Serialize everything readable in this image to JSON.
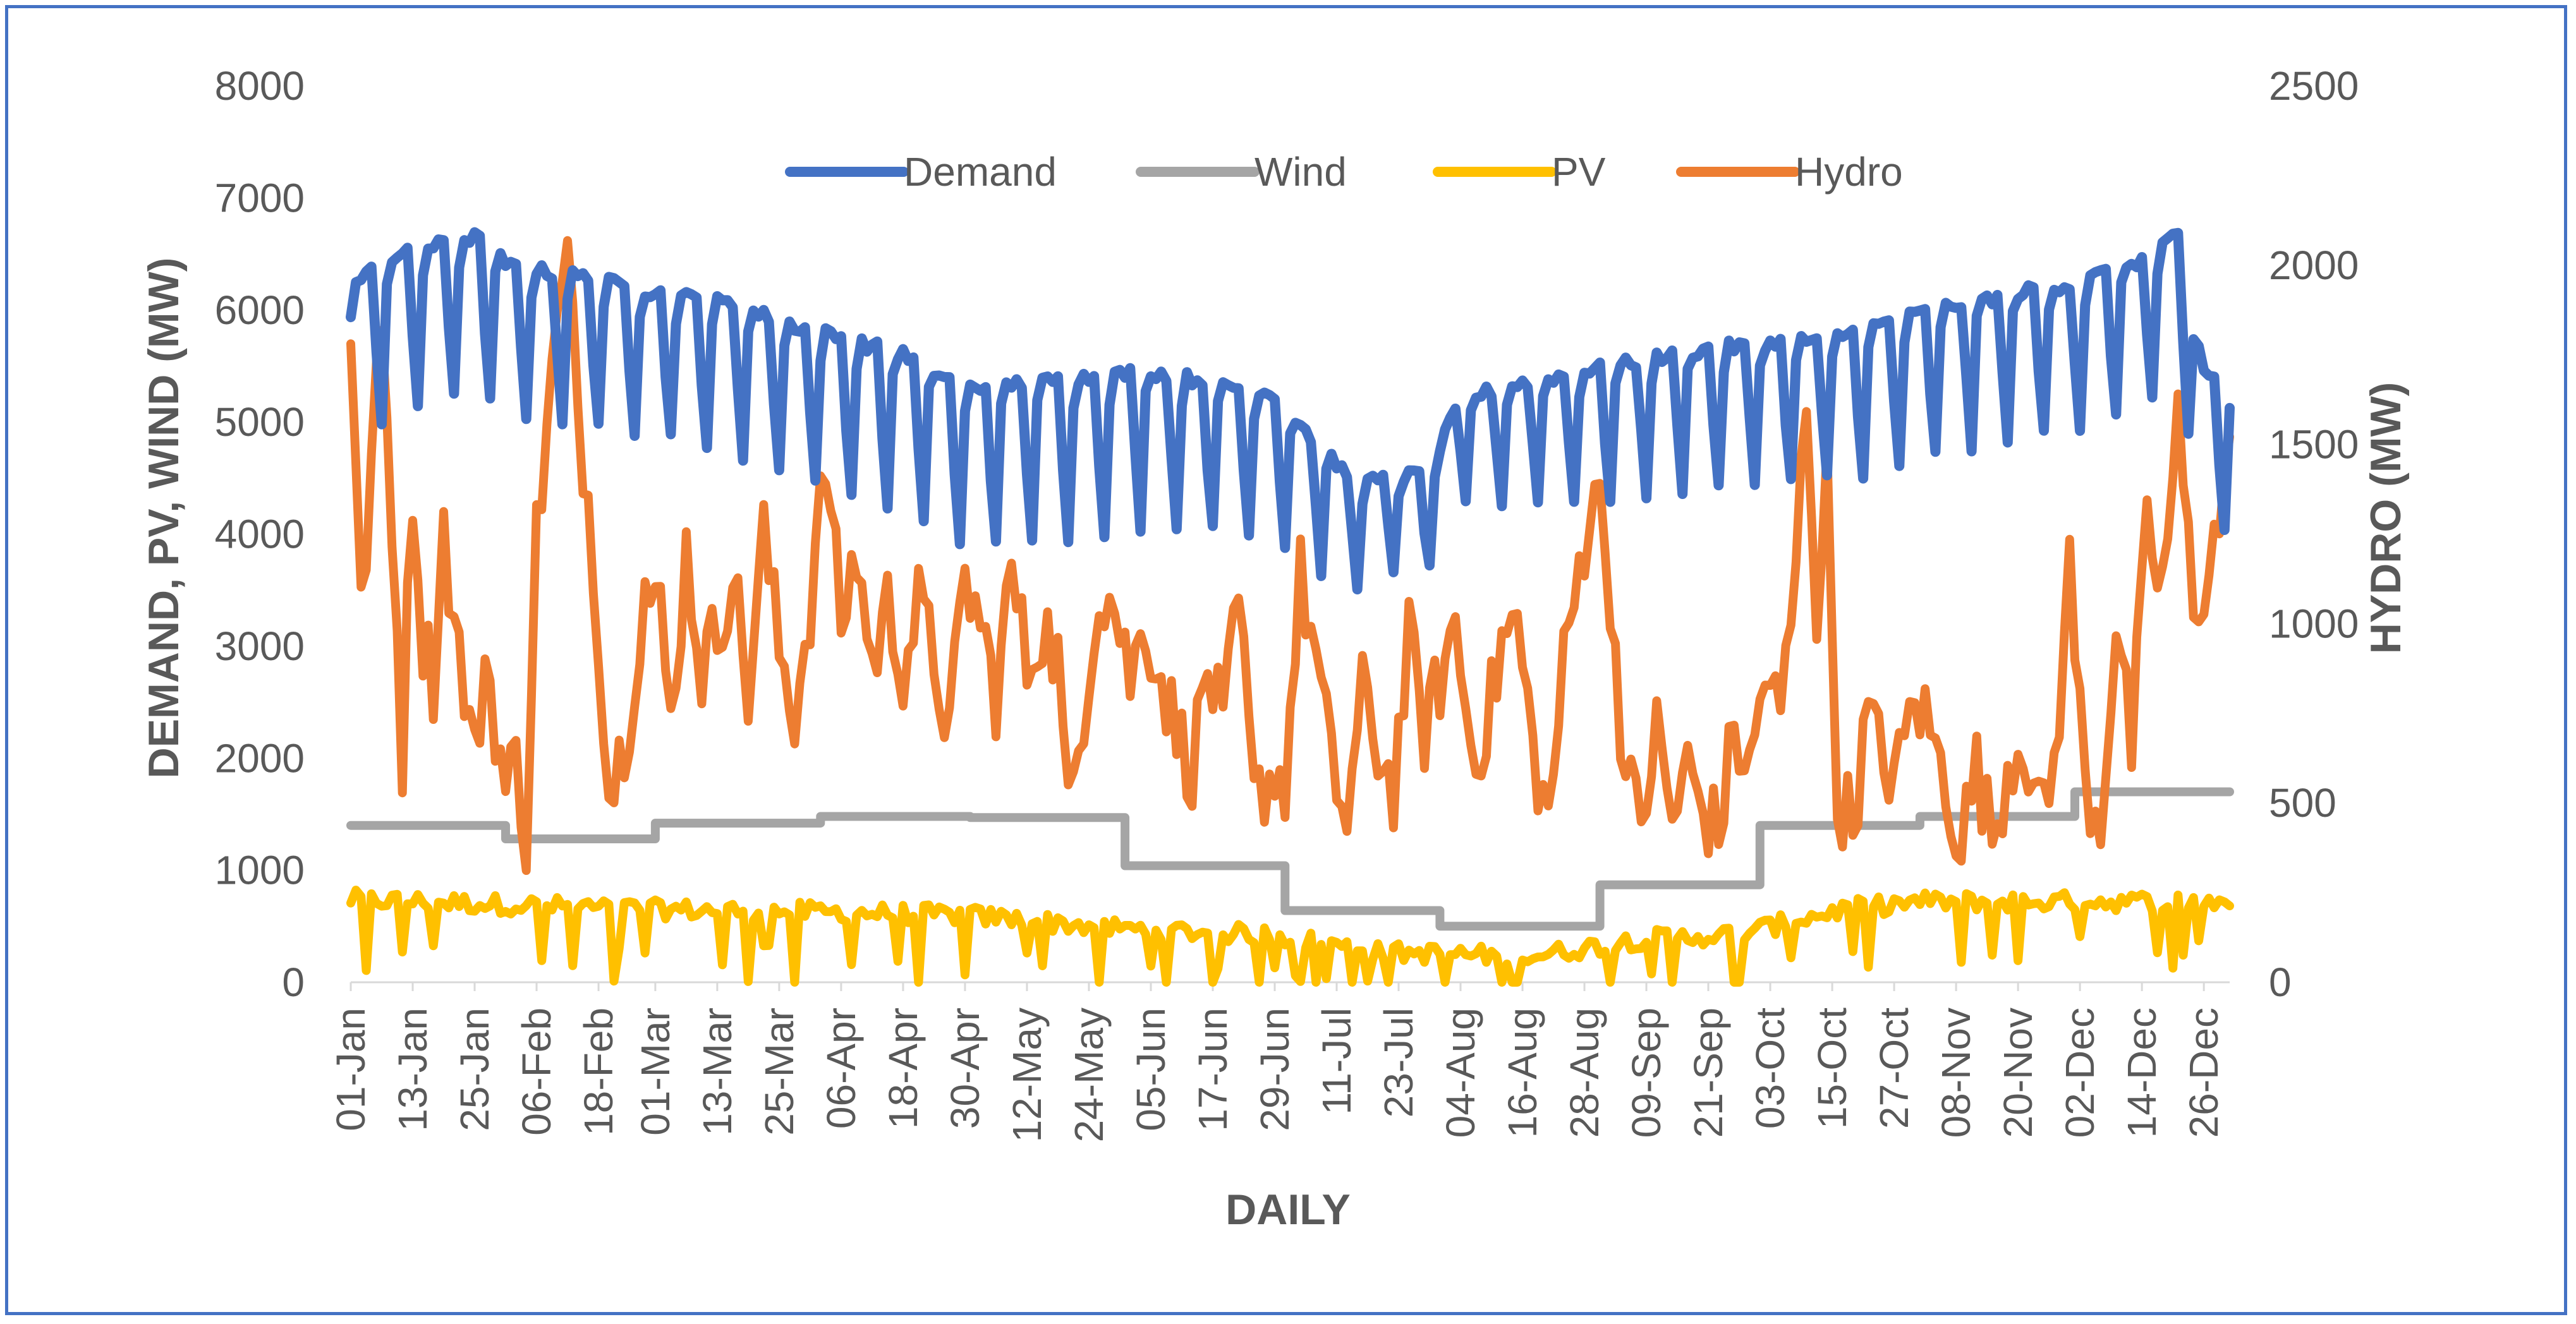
{
  "chart_data": {
    "type": "line",
    "title": "",
    "xlabel": "DAILY",
    "ylabel": "DEMAND, PV, WIND (MW)",
    "y2label": "HYDRO (MW)",
    "ylim": [
      0,
      8000
    ],
    "y2lim": [
      0,
      2500
    ],
    "yticks": [
      "0",
      "1000",
      "2000",
      "3000",
      "4000",
      "5000",
      "6000",
      "7000",
      "8000"
    ],
    "y2ticks": [
      "0",
      "500",
      "1000",
      "1500",
      "2000",
      "2500"
    ],
    "x_days": 365,
    "xtick_labels": [
      "01-Jan",
      "13-Jan",
      "25-Jan",
      "06-Feb",
      "18-Feb",
      "01-Mar",
      "13-Mar",
      "25-Mar",
      "06-Apr",
      "18-Apr",
      "30-Apr",
      "12-May",
      "24-May",
      "05-Jun",
      "17-Jun",
      "29-Jun",
      "11-Jul",
      "23-Jul",
      "04-Aug",
      "16-Aug",
      "28-Aug",
      "09-Sep",
      "21-Sep",
      "03-Oct",
      "15-Oct",
      "27-Oct",
      "08-Nov",
      "20-Nov",
      "02-Dec",
      "14-Dec",
      "26-Dec"
    ],
    "xtick_days": [
      1,
      13,
      25,
      37,
      49,
      60,
      72,
      84,
      96,
      108,
      120,
      132,
      144,
      156,
      168,
      180,
      192,
      204,
      216,
      228,
      240,
      252,
      264,
      276,
      288,
      300,
      312,
      324,
      336,
      348,
      360
    ],
    "legend": {
      "position": "top-center"
    },
    "series": [
      {
        "name": "Demand",
        "axis": "left",
        "color": "#4472C4",
        "style": "weekly-cycle",
        "weekday_level": [
          [
            1,
            6200
          ],
          [
            8,
            6450
          ],
          [
            20,
            6600
          ],
          [
            25,
            6650
          ],
          [
            32,
            6380
          ],
          [
            45,
            6300
          ],
          [
            60,
            6150
          ],
          [
            75,
            6050
          ],
          [
            84,
            5900
          ],
          [
            96,
            5750
          ],
          [
            108,
            5600
          ],
          [
            120,
            5300
          ],
          [
            132,
            5350
          ],
          [
            144,
            5400
          ],
          [
            156,
            5450
          ],
          [
            168,
            5350
          ],
          [
            180,
            5250
          ],
          [
            190,
            4700
          ],
          [
            196,
            4450
          ],
          [
            204,
            4500
          ],
          [
            210,
            4550
          ],
          [
            216,
            5200
          ],
          [
            228,
            5350
          ],
          [
            240,
            5450
          ],
          [
            252,
            5550
          ],
          [
            264,
            5650
          ],
          [
            276,
            5700
          ],
          [
            288,
            5750
          ],
          [
            300,
            5900
          ],
          [
            312,
            6050
          ],
          [
            324,
            6150
          ],
          [
            336,
            6250
          ],
          [
            348,
            6450
          ],
          [
            355,
            6650
          ],
          [
            360,
            5450
          ],
          [
            365,
            5300
          ]
        ],
        "weekend_dip": [
          [
            1,
            1400
          ],
          [
            60,
            1250
          ],
          [
            120,
            1450
          ],
          [
            180,
            1300
          ],
          [
            200,
            800
          ],
          [
            240,
            1150
          ],
          [
            300,
            1300
          ],
          [
            365,
            1300
          ]
        ]
      },
      {
        "name": "Wind",
        "axis": "left",
        "color": "#A5A5A5",
        "style": "step",
        "steps": [
          [
            1,
            1400
          ],
          [
            31,
            1280
          ],
          [
            60,
            1420
          ],
          [
            92,
            1480
          ],
          [
            121,
            1470
          ],
          [
            151,
            1040
          ],
          [
            182,
            640
          ],
          [
            212,
            500
          ],
          [
            243,
            870
          ],
          [
            274,
            1400
          ],
          [
            305,
            1480
          ],
          [
            335,
            1700
          ],
          [
            365,
            1700
          ]
        ]
      },
      {
        "name": "PV",
        "axis": "left",
        "color": "#FFC000",
        "style": "noisy",
        "level": [
          [
            1,
            740
          ],
          [
            60,
            650
          ],
          [
            90,
            630
          ],
          [
            120,
            600
          ],
          [
            150,
            480
          ],
          [
            180,
            420
          ],
          [
            200,
            270
          ],
          [
            230,
            230
          ],
          [
            250,
            380
          ],
          [
            270,
            430
          ],
          [
            290,
            650
          ],
          [
            305,
            720
          ],
          [
            335,
            720
          ],
          [
            365,
            720
          ]
        ],
        "noise": 170
      },
      {
        "name": "Hydro",
        "axis": "right",
        "color": "#ED7D31",
        "style": "noisy",
        "points": [
          [
            1,
            1830
          ],
          [
            3,
            1010
          ],
          [
            5,
            1450
          ],
          [
            7,
            1810
          ],
          [
            9,
            1310
          ],
          [
            11,
            640
          ],
          [
            13,
            1390
          ],
          [
            15,
            960
          ],
          [
            17,
            850
          ],
          [
            19,
            1270
          ],
          [
            21,
            1000
          ],
          [
            23,
            820
          ],
          [
            25,
            610
          ],
          [
            27,
            910
          ],
          [
            29,
            730
          ],
          [
            31,
            530
          ],
          [
            33,
            620
          ],
          [
            35,
            420
          ],
          [
            37,
            1250
          ],
          [
            39,
            1540
          ],
          [
            41,
            1830
          ],
          [
            43,
            2010
          ],
          [
            45,
            1600
          ],
          [
            47,
            1350
          ],
          [
            49,
            1000
          ],
          [
            51,
            520
          ],
          [
            53,
            620
          ],
          [
            55,
            760
          ],
          [
            58,
            1100
          ],
          [
            61,
            1020
          ],
          [
            63,
            720
          ],
          [
            66,
            1200
          ],
          [
            69,
            870
          ],
          [
            72,
            980
          ],
          [
            75,
            1150
          ],
          [
            78,
            800
          ],
          [
            81,
            1250
          ],
          [
            84,
            930
          ],
          [
            87,
            750
          ],
          [
            90,
            1050
          ],
          [
            93,
            1450
          ],
          [
            96,
            1000
          ],
          [
            99,
            1200
          ],
          [
            102,
            880
          ],
          [
            105,
            1050
          ],
          [
            108,
            880
          ],
          [
            111,
            1050
          ],
          [
            114,
            900
          ],
          [
            117,
            700
          ],
          [
            120,
            1120
          ],
          [
            123,
            1000
          ],
          [
            126,
            800
          ],
          [
            129,
            1150
          ],
          [
            132,
            880
          ],
          [
            135,
            1000
          ],
          [
            138,
            900
          ],
          [
            140,
            450
          ],
          [
            143,
            780
          ],
          [
            146,
            1100
          ],
          [
            149,
            1050
          ],
          [
            152,
            850
          ],
          [
            155,
            1000
          ],
          [
            158,
            850
          ],
          [
            161,
            700
          ],
          [
            164,
            600
          ],
          [
            167,
            880
          ],
          [
            170,
            700
          ],
          [
            173,
            1050
          ],
          [
            176,
            500
          ],
          [
            179,
            580
          ],
          [
            182,
            560
          ],
          [
            185,
            1130
          ],
          [
            188,
            900
          ],
          [
            191,
            600
          ],
          [
            194,
            450
          ],
          [
            197,
            800
          ],
          [
            200,
            650
          ],
          [
            203,
            540
          ],
          [
            206,
            950
          ],
          [
            209,
            700
          ],
          [
            212,
            840
          ],
          [
            215,
            1000
          ],
          [
            218,
            660
          ],
          [
            221,
            700
          ],
          [
            224,
            950
          ],
          [
            227,
            1000
          ],
          [
            230,
            650
          ],
          [
            233,
            450
          ],
          [
            236,
            880
          ],
          [
            239,
            1150
          ],
          [
            242,
            1420
          ],
          [
            245,
            1100
          ],
          [
            248,
            560
          ],
          [
            251,
            450
          ],
          [
            254,
            700
          ],
          [
            257,
            450
          ],
          [
            260,
            600
          ],
          [
            263,
            480
          ],
          [
            266,
            420
          ],
          [
            269,
            700
          ],
          [
            272,
            580
          ],
          [
            275,
            870
          ],
          [
            278,
            730
          ],
          [
            281,
            1150
          ],
          [
            283,
            1650
          ],
          [
            285,
            1050
          ],
          [
            287,
            1400
          ],
          [
            289,
            520
          ],
          [
            292,
            450
          ],
          [
            295,
            750
          ],
          [
            298,
            600
          ],
          [
            301,
            600
          ],
          [
            304,
            800
          ],
          [
            307,
            700
          ],
          [
            310,
            550
          ],
          [
            313,
            400
          ],
          [
            316,
            600
          ],
          [
            319,
            400
          ],
          [
            322,
            600
          ],
          [
            325,
            700
          ],
          [
            328,
            450
          ],
          [
            331,
            600
          ],
          [
            334,
            1150
          ],
          [
            337,
            550
          ],
          [
            340,
            450
          ],
          [
            343,
            1000
          ],
          [
            346,
            650
          ],
          [
            349,
            1250
          ],
          [
            352,
            1100
          ],
          [
            355,
            1550
          ],
          [
            358,
            1050
          ],
          [
            361,
            1150
          ],
          [
            363,
            1300
          ],
          [
            365,
            1430
          ]
        ],
        "noise": 120
      }
    ]
  }
}
